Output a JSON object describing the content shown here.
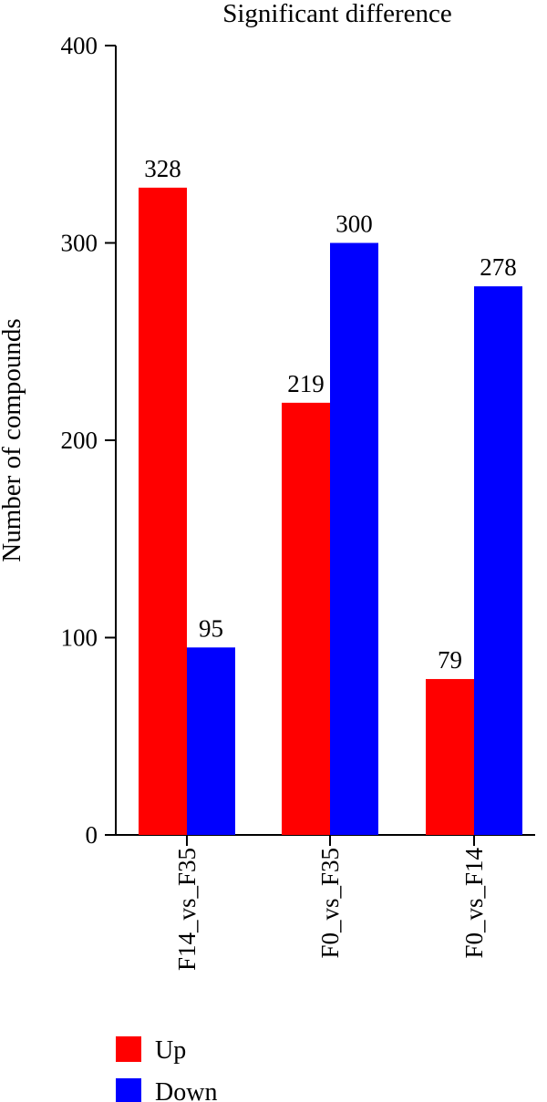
{
  "chart_data": {
    "type": "bar",
    "title": "Significant difference",
    "xlabel": "",
    "ylabel": "Number of compounds",
    "categories": [
      "F14_vs_F35",
      "F0_vs_F35",
      "F0_vs_F14"
    ],
    "series": [
      {
        "name": "Up",
        "color": "#ff0000",
        "values": [
          328,
          219,
          79
        ]
      },
      {
        "name": "Down",
        "color": "#0000ff",
        "values": [
          95,
          300,
          278
        ]
      }
    ],
    "ylim": [
      0,
      400
    ],
    "yticks": [
      0,
      100,
      200,
      300,
      400
    ],
    "grid": false,
    "legend_position": "bottom-left"
  }
}
